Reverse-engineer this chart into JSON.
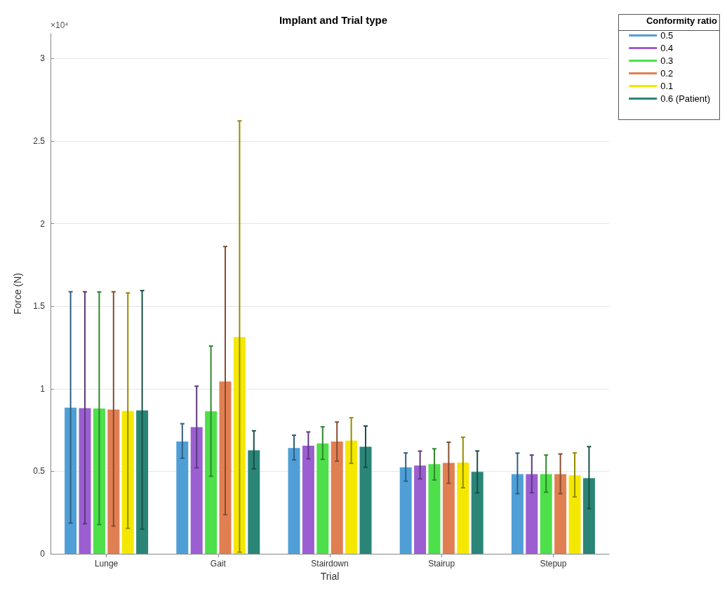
{
  "chart_data": {
    "type": "bar",
    "title": "Implant and Trial type",
    "xlabel": "Trial",
    "ylabel": "Force (N)",
    "legend_title": "Conformity ratio",
    "annotations": [
      "×10⁴"
    ],
    "categories": [
      "Lunge",
      "Gait",
      "Stairdown",
      "Stairup",
      "Stepup"
    ],
    "series": [
      {
        "name": "0.5",
        "color": "#4f9fd6",
        "values": [
          0.885,
          0.68,
          0.641,
          0.524,
          0.483
        ],
        "errors": [
          [
            0.186,
            1.587
          ],
          [
            0.579,
            0.788
          ],
          [
            0.569,
            0.718
          ],
          [
            0.44,
            0.611
          ],
          [
            0.364,
            0.61
          ]
        ]
      },
      {
        "name": "0.4",
        "color": "#9b5fd1",
        "values": [
          0.882,
          0.767,
          0.655,
          0.535,
          0.483
        ],
        "errors": [
          [
            0.182,
            1.587
          ],
          [
            0.521,
            1.015
          ],
          [
            0.575,
            0.738
          ],
          [
            0.454,
            0.622
          ],
          [
            0.37,
            0.598
          ]
        ]
      },
      {
        "name": "0.3",
        "color": "#4de04a",
        "values": [
          0.88,
          0.863,
          0.669,
          0.543,
          0.483
        ],
        "errors": [
          [
            0.177,
            1.586
          ],
          [
            0.47,
            1.258
          ],
          [
            0.572,
            0.769
          ],
          [
            0.447,
            0.636
          ],
          [
            0.373,
            0.598
          ]
        ]
      },
      {
        "name": "0.2",
        "color": "#e07f52",
        "values": [
          0.874,
          1.044,
          0.68,
          0.55,
          0.483
        ],
        "errors": [
          [
            0.168,
            1.587
          ],
          [
            0.237,
            1.861
          ],
          [
            0.561,
            0.798
          ],
          [
            0.427,
            0.676
          ],
          [
            0.364,
            0.605
          ]
        ]
      },
      {
        "name": "0.1",
        "color": "#f5e800",
        "values": [
          0.865,
          1.313,
          0.686,
          0.553,
          0.475
        ],
        "errors": [
          [
            0.154,
            1.58
          ],
          [
            0.01,
            2.622
          ],
          [
            0.548,
            0.824
          ],
          [
            0.4,
            0.706
          ],
          [
            0.345,
            0.611
          ]
        ]
      },
      {
        "name": "0.6 (Patient)",
        "color": "#2a8577",
        "values": [
          0.868,
          0.627,
          0.648,
          0.496,
          0.458
        ],
        "errors": [
          [
            0.15,
            1.594
          ],
          [
            0.514,
            0.745
          ],
          [
            0.524,
            0.774
          ],
          [
            0.369,
            0.623
          ],
          [
            0.274,
            0.649
          ]
        ]
      }
    ],
    "ylim": [
      0,
      3.15
    ],
    "yticks": [
      0,
      0.5,
      1,
      1.5,
      2,
      2.5,
      3
    ],
    "grid": "y",
    "legend": "top right"
  }
}
